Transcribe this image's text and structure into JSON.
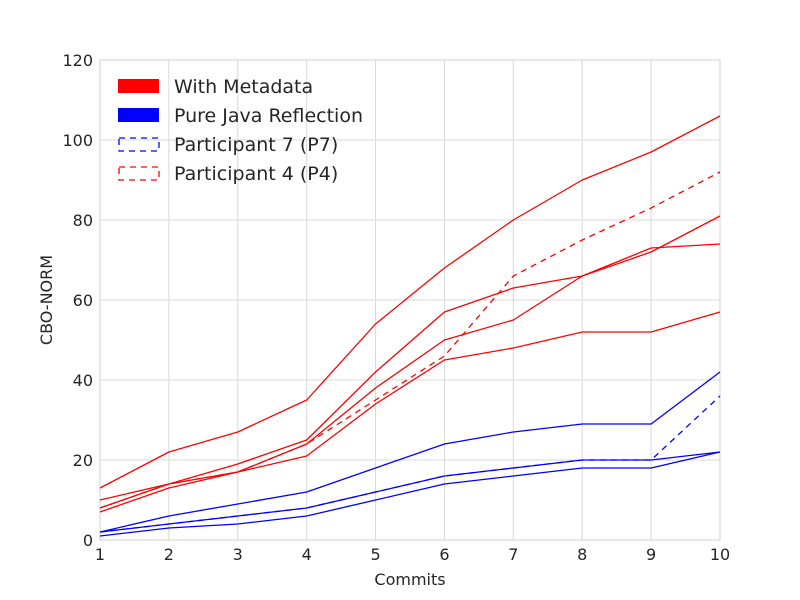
{
  "chart_data": {
    "type": "line",
    "title": "",
    "xlabel": "Commits",
    "ylabel": "CBO-NORM",
    "x": [
      1,
      2,
      3,
      4,
      5,
      6,
      7,
      8,
      9,
      10
    ],
    "xlim": [
      1,
      10
    ],
    "ylim": [
      0,
      120
    ],
    "xticks": [
      "1",
      "2",
      "3",
      "4",
      "5",
      "6",
      "7",
      "8",
      "9",
      "10"
    ],
    "yticks": [
      "0",
      "20",
      "40",
      "60",
      "80",
      "100",
      "120"
    ],
    "grid": true,
    "legend_position": "top-left",
    "legend": [
      {
        "label": "With Metadata",
        "kind": "patch",
        "color": "#ff0000"
      },
      {
        "label": "Pure Java Reflection",
        "kind": "patch",
        "color": "#0000ff"
      },
      {
        "label": "Participant 7 (P7)",
        "kind": "dashed-box",
        "color": "#0000ff"
      },
      {
        "label": "Participant 4 (P4)",
        "kind": "dashed-box",
        "color": "#ff0000"
      }
    ],
    "series": [
      {
        "group": "With Metadata",
        "color": "#ff0000",
        "style": "solid",
        "values": [
          13,
          22,
          27,
          35,
          54,
          68,
          80,
          90,
          97,
          106
        ]
      },
      {
        "group": "With Metadata",
        "color": "#ff0000",
        "style": "solid",
        "values": [
          8,
          14,
          19,
          25,
          42,
          57,
          63,
          66,
          72,
          81
        ]
      },
      {
        "group": "With Metadata",
        "color": "#ff0000",
        "style": "solid",
        "values": [
          7,
          13,
          17,
          24,
          38,
          50,
          55,
          66,
          73,
          74
        ]
      },
      {
        "group": "With Metadata",
        "color": "#ff0000",
        "style": "solid",
        "values": [
          10,
          14,
          17,
          21,
          34,
          45,
          48,
          52,
          52,
          57
        ]
      },
      {
        "group": "Participant 4 (P4)",
        "color": "#ff0000",
        "style": "dashed",
        "values": [
          8,
          14,
          17,
          24,
          35,
          46,
          66,
          75,
          83,
          92
        ]
      },
      {
        "group": "Pure Java Reflection",
        "color": "#0000ff",
        "style": "solid",
        "values": [
          2,
          6,
          9,
          12,
          18,
          24,
          27,
          29,
          29,
          42
        ]
      },
      {
        "group": "Pure Java Reflection",
        "color": "#0000ff",
        "style": "solid",
        "values": [
          2,
          4,
          6,
          8,
          12,
          16,
          18,
          20,
          20,
          22
        ]
      },
      {
        "group": "Pure Java Reflection",
        "color": "#0000ff",
        "style": "solid",
        "values": [
          1,
          3,
          4,
          6,
          10,
          14,
          16,
          18,
          18,
          22
        ]
      },
      {
        "group": "Participant 7 (P7)",
        "color": "#0000ff",
        "style": "dashed",
        "values": [
          2,
          4,
          6,
          8,
          12,
          16,
          18,
          20,
          20,
          36
        ]
      }
    ]
  }
}
